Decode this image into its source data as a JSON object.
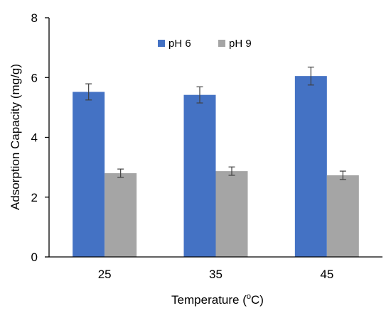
{
  "chart_data": {
    "type": "bar",
    "title": "",
    "xlabel": "Temperature (",
    "xlabel_sup": "o",
    "xlabel_tail": "C)",
    "ylabel": "Adsorption Capacity (mg/g)",
    "categories": [
      "25",
      "35",
      "45"
    ],
    "ylim": [
      0,
      8
    ],
    "yticks": [
      0,
      2,
      4,
      6,
      8
    ],
    "grid": false,
    "legend_position": "top-center",
    "series": [
      {
        "name": "pH 6",
        "color": "#4472C4",
        "values": [
          5.52,
          5.42,
          6.05
        ],
        "errors": [
          0.27,
          0.27,
          0.3
        ]
      },
      {
        "name": "pH 9",
        "color": "#A5A5A5",
        "values": [
          2.8,
          2.87,
          2.73
        ],
        "errors": [
          0.14,
          0.14,
          0.14
        ]
      }
    ]
  }
}
